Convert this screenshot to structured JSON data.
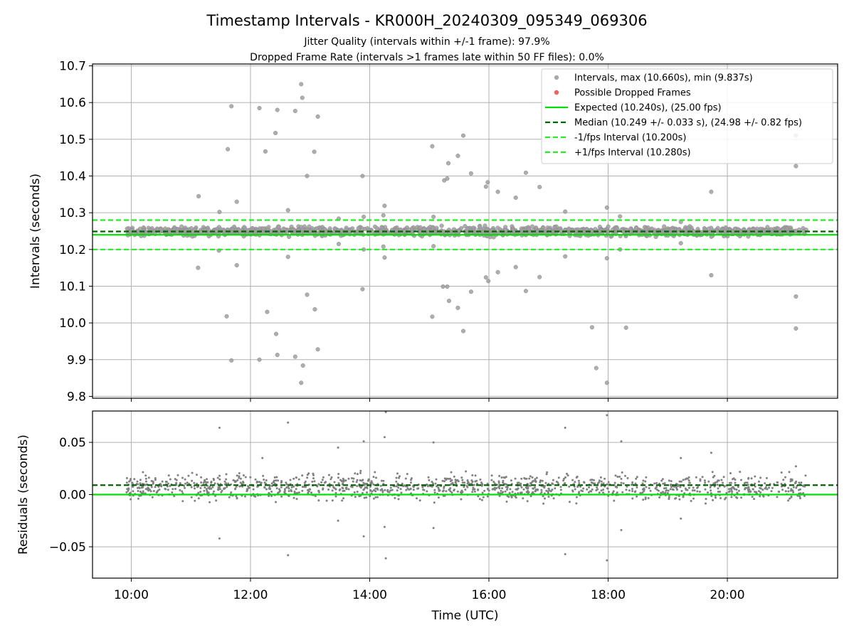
{
  "figure": {
    "title": "Timestamp Intervals - KR000H_20240309_095349_069306",
    "subtitle_line1": "Jitter Quality (intervals within +/-1 frame): 97.9%",
    "subtitle_line2": "Dropped Frame Rate (intervals >1 frames late within 50 FF files): 0.0%"
  },
  "colors": {
    "points": "#808080",
    "points_fill": "#a0a0a0",
    "dropped": "#f05050",
    "expected": "#00e000",
    "median": "#006400",
    "fps_interval": "#22ee22",
    "grid": "#b0b0b0"
  },
  "chart_data": [
    {
      "type": "scatter",
      "xlabel": "",
      "ylabel": "Intervals (seconds)",
      "xlim": [
        9.35,
        21.85
      ],
      "ylim": [
        9.795,
        10.705
      ],
      "x_ticks": [
        10,
        12,
        14,
        16,
        18,
        20
      ],
      "y_ticks": [
        9.8,
        9.9,
        10.0,
        10.1,
        10.2,
        10.3,
        10.4,
        10.5,
        10.6,
        10.7
      ],
      "y_tick_labels": [
        "9.8",
        "9.9",
        "10.0",
        "10.1",
        "10.2",
        "10.3",
        "10.4",
        "10.5",
        "10.6",
        "10.7"
      ],
      "grid": true,
      "legend_position": "top-right",
      "legend": [
        "Intervals, max (10.660s), min (9.837s)",
        "Possible Dropped Frames",
        "Expected (10.240s), (25.00 fps)",
        "Median (10.249 +/- 0.033 s), (24.98 +/- 0.82 fps)",
        "-1/fps Interval (10.200s)",
        "+1/fps Interval (10.280s)"
      ],
      "hlines": {
        "expected": 10.24,
        "median": 10.249,
        "minus_fps": 10.2,
        "plus_fps": 10.28
      },
      "band": {
        "x_start": 9.92,
        "x_end": 21.33,
        "center": 10.249,
        "spread": 0.012
      },
      "outliers": [
        [
          11.13,
          10.345
        ],
        [
          11.12,
          10.15
        ],
        [
          11.48,
          10.302
        ],
        [
          11.47,
          10.197
        ],
        [
          11.62,
          10.473
        ],
        [
          11.6,
          10.018
        ],
        [
          11.68,
          10.59
        ],
        [
          11.68,
          9.898
        ],
        [
          11.77,
          10.33
        ],
        [
          11.77,
          10.157
        ],
        [
          12.15,
          10.585
        ],
        [
          12.15,
          9.9
        ],
        [
          12.25,
          10.467
        ],
        [
          12.28,
          10.03
        ],
        [
          12.42,
          10.517
        ],
        [
          12.43,
          9.97
        ],
        [
          12.45,
          10.58
        ],
        [
          12.45,
          9.913
        ],
        [
          12.63,
          10.307
        ],
        [
          12.63,
          10.18
        ],
        [
          12.75,
          10.577
        ],
        [
          12.75,
          9.908
        ],
        [
          12.85,
          10.65
        ],
        [
          12.85,
          9.837
        ],
        [
          12.87,
          10.613
        ],
        [
          12.88,
          9.884
        ],
        [
          12.95,
          10.4
        ],
        [
          12.95,
          10.077
        ],
        [
          13.07,
          10.466
        ],
        [
          13.08,
          10.037
        ],
        [
          13.13,
          10.562
        ],
        [
          13.13,
          9.928
        ],
        [
          13.48,
          10.284
        ],
        [
          13.48,
          10.215
        ],
        [
          13.88,
          10.4
        ],
        [
          13.88,
          10.092
        ],
        [
          13.9,
          10.289
        ],
        [
          13.9,
          10.2
        ],
        [
          14.25,
          10.319
        ],
        [
          14.25,
          10.178
        ],
        [
          14.23,
          10.293
        ],
        [
          14.23,
          10.208
        ],
        [
          15.05,
          10.481
        ],
        [
          15.05,
          10.017
        ],
        [
          15.07,
          10.289
        ],
        [
          15.07,
          10.209
        ],
        [
          15.25,
          10.388
        ],
        [
          15.23,
          10.099
        ],
        [
          15.3,
          10.393
        ],
        [
          15.3,
          10.099
        ],
        [
          15.32,
          10.435
        ],
        [
          15.33,
          10.06
        ],
        [
          15.48,
          10.455
        ],
        [
          15.48,
          10.041
        ],
        [
          15.57,
          10.51
        ],
        [
          15.57,
          9.978
        ],
        [
          15.7,
          10.407
        ],
        [
          15.7,
          10.085
        ],
        [
          15.95,
          10.371
        ],
        [
          15.95,
          10.124
        ],
        [
          15.98,
          10.383
        ],
        [
          15.99,
          10.114
        ],
        [
          16.15,
          10.357
        ],
        [
          16.15,
          10.138
        ],
        [
          16.45,
          10.341
        ],
        [
          16.45,
          10.152
        ],
        [
          16.62,
          10.409
        ],
        [
          16.62,
          10.087
        ],
        [
          16.85,
          10.37
        ],
        [
          16.85,
          10.125
        ],
        [
          17.28,
          10.303
        ],
        [
          17.28,
          10.181
        ],
        [
          17.73,
          9.988
        ],
        [
          17.8,
          9.877
        ],
        [
          17.98,
          10.314
        ],
        [
          17.98,
          9.837
        ],
        [
          17.98,
          10.176
        ],
        [
          18.2,
          10.29
        ],
        [
          18.2,
          10.2
        ],
        [
          18.3,
          9.987
        ],
        [
          19.22,
          10.275
        ],
        [
          19.22,
          10.217
        ],
        [
          19.73,
          10.357
        ],
        [
          19.73,
          10.13
        ],
        [
          21.15,
          10.51
        ],
        [
          21.15,
          10.427
        ],
        [
          21.15,
          10.072
        ],
        [
          21.15,
          9.985
        ]
      ]
    },
    {
      "type": "scatter",
      "xlabel": "Time (UTC)",
      "ylabel": "Residuals (seconds)",
      "xlim": [
        9.35,
        21.85
      ],
      "ylim": [
        -0.08,
        0.08
      ],
      "x_ticks": [
        10,
        12,
        14,
        16,
        18,
        20
      ],
      "x_tick_labels": [
        "10:00",
        "12:00",
        "14:00",
        "16:00",
        "18:00",
        "20:00"
      ],
      "y_ticks": [
        -0.05,
        0.0,
        0.05
      ],
      "y_tick_labels": [
        "−0.05",
        "0.00",
        "0.05"
      ],
      "grid": true,
      "hlines": {
        "expected": 0.0,
        "median": 0.009
      },
      "band": {
        "x_start": 9.92,
        "x_end": 21.33,
        "center": 0.007,
        "spread": 0.012
      },
      "outliers": [
        [
          11.48,
          0.064
        ],
        [
          11.48,
          -0.042
        ],
        [
          12.2,
          0.035
        ],
        [
          12.63,
          0.069
        ],
        [
          12.63,
          -0.058
        ],
        [
          13.05,
          0.02
        ],
        [
          13.47,
          0.045
        ],
        [
          13.47,
          -0.025
        ],
        [
          13.9,
          0.051
        ],
        [
          13.9,
          -0.04
        ],
        [
          14.27,
          0.079
        ],
        [
          14.25,
          0.055
        ],
        [
          14.25,
          -0.031
        ],
        [
          14.27,
          -0.061
        ],
        [
          15.07,
          0.05
        ],
        [
          15.07,
          -0.032
        ],
        [
          17.28,
          0.064
        ],
        [
          17.28,
          -0.057
        ],
        [
          17.98,
          0.076
        ],
        [
          17.98,
          -0.063
        ],
        [
          18.22,
          0.051
        ],
        [
          18.22,
          -0.034
        ],
        [
          19.22,
          0.035
        ],
        [
          19.22,
          -0.023
        ],
        [
          19.73,
          0.04
        ],
        [
          21.15,
          0.027
        ]
      ]
    }
  ]
}
